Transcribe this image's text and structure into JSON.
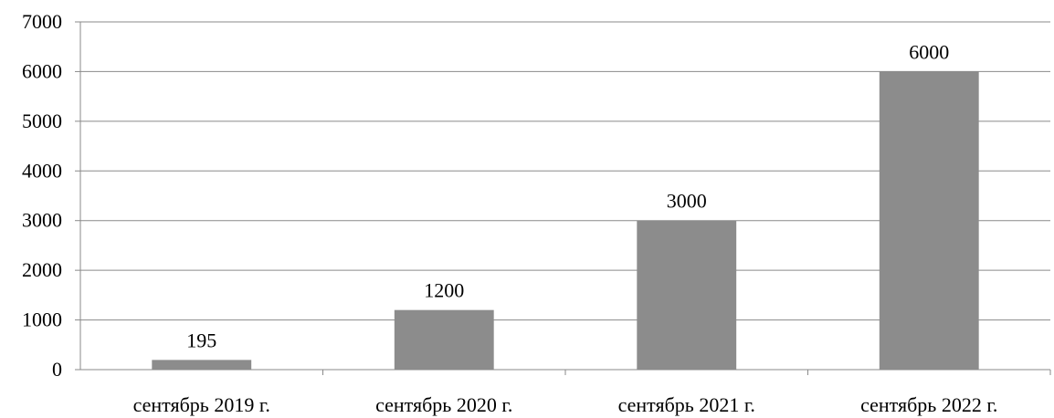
{
  "chart_data": {
    "type": "bar",
    "categories": [
      "сентябрь 2019 г.",
      "сентябрь 2020 г.",
      "сентябрь 2021 г.",
      "сентябрь 2022 г."
    ],
    "values": [
      195,
      1200,
      3000,
      6000
    ],
    "data_labels": [
      "195",
      "1200",
      "3000",
      "6000"
    ],
    "y_ticks": [
      "0",
      "1000",
      "2000",
      "3000",
      "4000",
      "5000",
      "6000",
      "7000"
    ],
    "ylim": [
      0,
      7000
    ],
    "grid": true,
    "legend": "none",
    "bar_color": "#8c8c8c",
    "grid_color": "#8a8a8a",
    "axis_color": "#8a8a8a"
  }
}
